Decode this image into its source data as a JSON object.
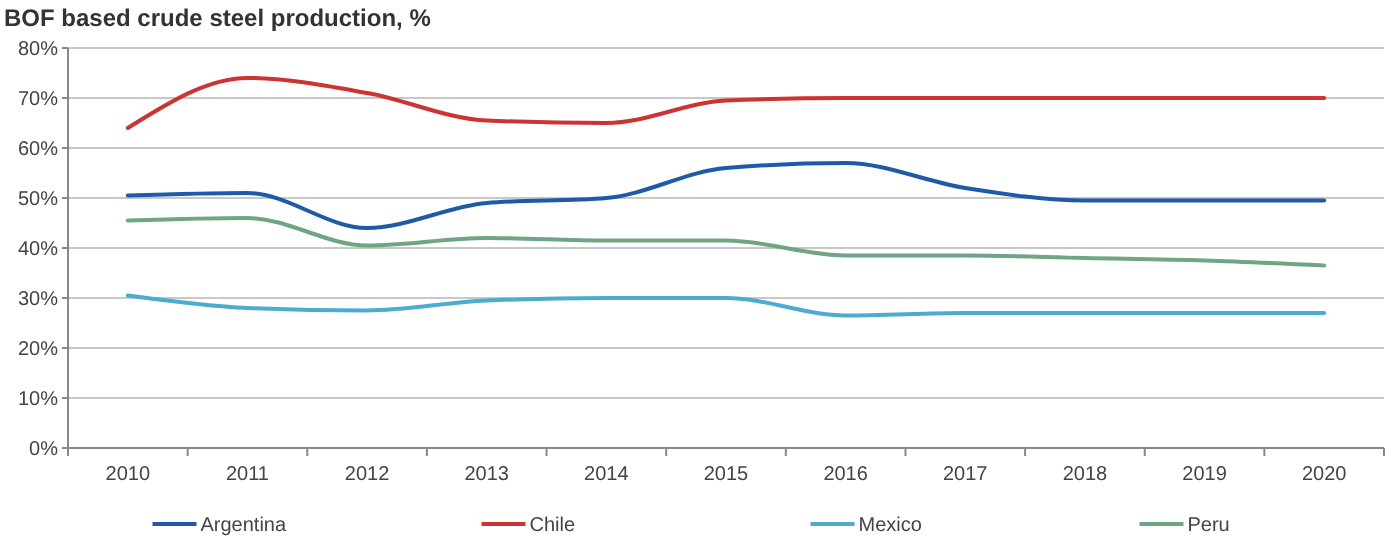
{
  "chart_data": {
    "type": "line",
    "title": "BOF based crude steel production, %",
    "categories": [
      "2010",
      "2011",
      "2012",
      "2013",
      "2014",
      "2015",
      "2016",
      "2017",
      "2018",
      "2019",
      "2020"
    ],
    "series": [
      {
        "name": "Argentina",
        "color": "#1f5aa8",
        "values": [
          50.5,
          51,
          44,
          49,
          50,
          56,
          57,
          52,
          49.5,
          49.5,
          49.5
        ]
      },
      {
        "name": "Chile",
        "color": "#cc3333",
        "values": [
          64,
          74,
          71,
          65.5,
          65,
          69.5,
          70,
          70,
          70,
          70,
          70
        ]
      },
      {
        "name": "Mexico",
        "color": "#4bacd0",
        "values": [
          30.5,
          28,
          27.5,
          29.5,
          30,
          30,
          26.5,
          27,
          27,
          27,
          27
        ]
      },
      {
        "name": "Peru",
        "color": "#6fa584",
        "values": [
          45.5,
          46,
          40.5,
          42,
          41.5,
          41.5,
          38.5,
          38.5,
          38,
          37.5,
          36.5
        ]
      }
    ],
    "ylim": [
      0,
      80
    ],
    "yticks": [
      {
        "value": 0,
        "label": "0%"
      },
      {
        "value": 10,
        "label": "10%"
      },
      {
        "value": 20,
        "label": "20%"
      },
      {
        "value": 30,
        "label": "30%"
      },
      {
        "value": 40,
        "label": "40%"
      },
      {
        "value": 50,
        "label": "50%"
      },
      {
        "value": 60,
        "label": "60%"
      },
      {
        "value": 70,
        "label": "70%"
      },
      {
        "value": 80,
        "label": "80%"
      }
    ],
    "grid": "y",
    "legend": "bottom",
    "marker": "none",
    "line_style": "solid"
  }
}
